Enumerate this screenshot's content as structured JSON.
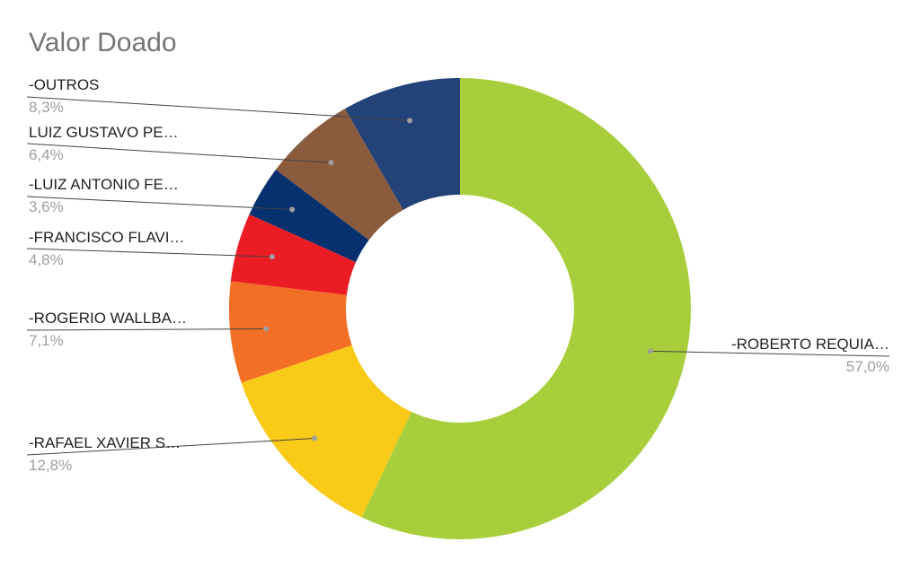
{
  "chart_data": {
    "type": "pie",
    "style": "donut",
    "title": "Valor Doado",
    "slices": [
      {
        "label": "-ROBERTO REQUIA…",
        "pct_label": "57,0%",
        "value": 57.0,
        "color": "#a8cf3b"
      },
      {
        "label": "-RAFAEL XAVIER S…",
        "pct_label": "12,8%",
        "value": 12.8,
        "color": "#f9ca17"
      },
      {
        "label": "-ROGERIO WALLBA…",
        "pct_label": "7,1%",
        "value": 7.1,
        "color": "#f26f25"
      },
      {
        "label": "-FRANCISCO FLAVI…",
        "pct_label": "4,8%",
        "value": 4.8,
        "color": "#ec1c24"
      },
      {
        "label": "-LUIZ ANTONIO FE…",
        "pct_label": "3,6%",
        "value": 3.6,
        "color": "#06306e"
      },
      {
        "label": "LUIZ GUSTAVO PE…",
        "pct_label": "6,4%",
        "value": 6.4,
        "color": "#8b5b3e"
      },
      {
        "label": "-OUTROS",
        "pct_label": "8,3%",
        "value": 8.3,
        "color": "#234277"
      }
    ],
    "legend": "none"
  }
}
